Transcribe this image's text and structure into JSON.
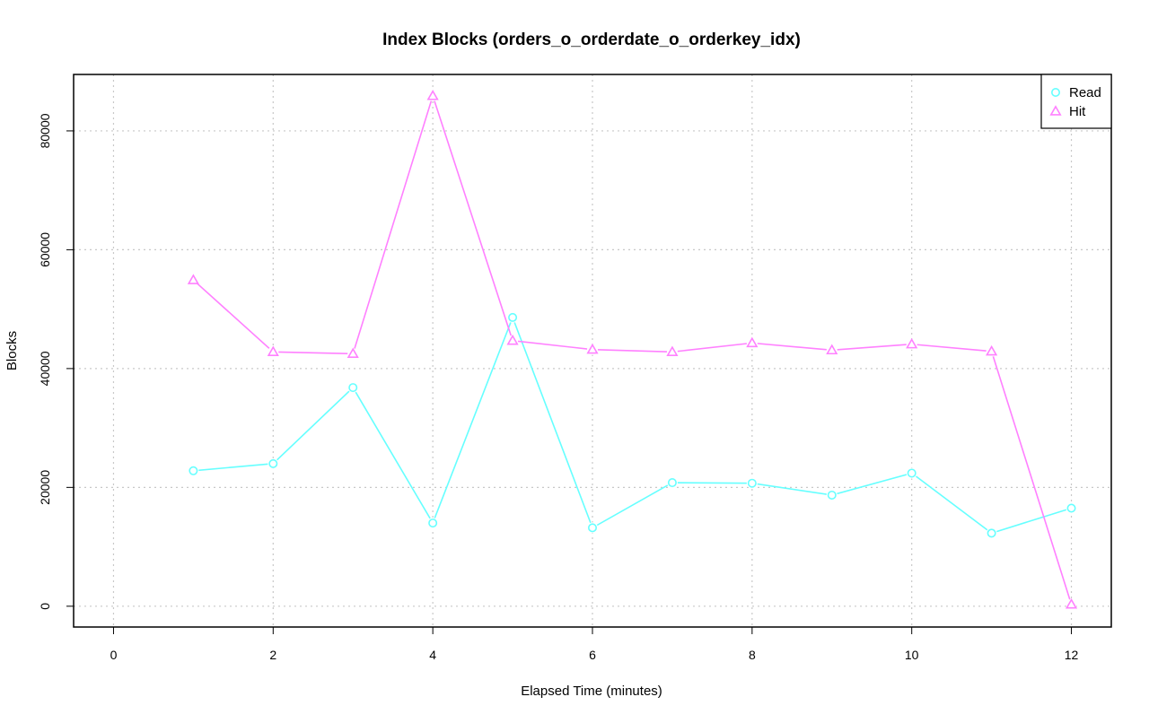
{
  "chart_data": {
    "type": "line",
    "title": "Index Blocks (orders_o_orderdate_o_orderkey_idx)",
    "xlabel": "Elapsed Time (minutes)",
    "ylabel": "Blocks",
    "xlim": [
      -0.5,
      12.5
    ],
    "ylim": [
      -3500,
      89500
    ],
    "x_ticks": [
      0,
      2,
      4,
      6,
      8,
      10,
      12
    ],
    "x_tick_labels": [
      "0",
      "2",
      "4",
      "6",
      "8",
      "10",
      "12"
    ],
    "y_ticks": [
      0,
      20000,
      40000,
      60000,
      80000
    ],
    "y_tick_labels": [
      "0",
      "20000",
      "40000",
      "60000",
      "80000"
    ],
    "grid": true,
    "legend_position": "top-right",
    "x": [
      1,
      2,
      3,
      4,
      5,
      6,
      7,
      8,
      9,
      10,
      11,
      12
    ],
    "series": [
      {
        "name": "Read",
        "color": "#66ffff",
        "marker": "circle",
        "values": [
          22800,
          24000,
          36800,
          14000,
          48600,
          13200,
          20800,
          20700,
          18700,
          22400,
          12300,
          16500
        ]
      },
      {
        "name": "Hit",
        "color": "#ff80ff",
        "marker": "triangle",
        "values": [
          54900,
          42800,
          42500,
          85900,
          44700,
          43200,
          42800,
          44300,
          43100,
          44100,
          42900,
          300
        ]
      }
    ]
  }
}
